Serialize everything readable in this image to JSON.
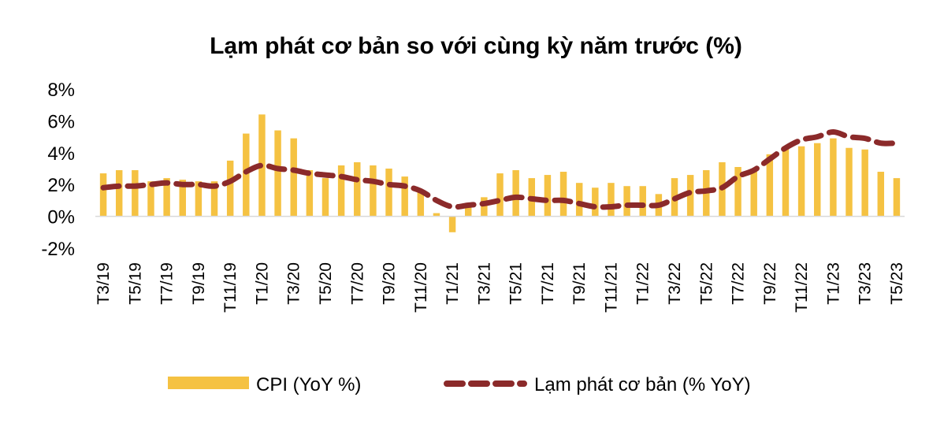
{
  "chart_data": {
    "type": "bar",
    "title": "Lạm phát cơ bản so với cùng kỳ năm trước (%)",
    "xlabel": "",
    "ylabel": "",
    "ylim": [
      -2,
      8
    ],
    "ytick_values": [
      -2,
      0,
      2,
      4,
      6,
      8
    ],
    "ytick_labels": [
      "-2%",
      "0%",
      "2%",
      "4%",
      "6%",
      "8%"
    ],
    "categories": [
      "T3/19",
      "T4/19",
      "T5/19",
      "T6/19",
      "T7/19",
      "T8/19",
      "T9/19",
      "T10/19",
      "T11/19",
      "T12/19",
      "T1/20",
      "T2/20",
      "T3/20",
      "T4/20",
      "T5/20",
      "T6/20",
      "T7/20",
      "T8/20",
      "T9/20",
      "T10/20",
      "T11/20",
      "T12/20",
      "T1/21",
      "T2/21",
      "T3/21",
      "T4/21",
      "T5/21",
      "T6/21",
      "T7/21",
      "T8/21",
      "T9/21",
      "T10/21",
      "T11/21",
      "T12/21",
      "T1/22",
      "T2/22",
      "T3/22",
      "T4/22",
      "T5/22",
      "T6/22",
      "T7/22",
      "T8/22",
      "T9/22",
      "T10/22",
      "T11/22",
      "T12/22",
      "T1/23",
      "T2/23",
      "T3/23",
      "T4/23",
      "T5/23"
    ],
    "visible_tick_labels": [
      "T3/19",
      "T5/19",
      "T7/19",
      "T9/19",
      "T11/19",
      "T1/20",
      "T3/20",
      "T5/20",
      "T7/20",
      "T9/20",
      "T11/20",
      "T1/21",
      "T3/21",
      "T5/21",
      "T7/21",
      "T9/21",
      "T11/21",
      "T1/22",
      "T3/22",
      "T5/22",
      "T7/22",
      "T9/22",
      "T11/22",
      "T1/23",
      "T3/23",
      "T5/23"
    ],
    "series": [
      {
        "name": "CPI (YoY %)",
        "type": "bar",
        "color": "#F5C242",
        "values": [
          2.7,
          2.9,
          2.9,
          2.2,
          2.4,
          2.3,
          2.2,
          2.2,
          3.5,
          5.2,
          6.4,
          5.4,
          4.9,
          2.9,
          2.4,
          3.2,
          3.4,
          3.2,
          3.0,
          2.5,
          1.5,
          0.2,
          -1.0,
          0.7,
          1.2,
          2.7,
          2.9,
          2.4,
          2.6,
          2.8,
          2.1,
          1.8,
          2.1,
          1.9,
          1.9,
          1.4,
          2.4,
          2.6,
          2.9,
          3.4,
          3.1,
          2.9,
          3.9,
          4.3,
          4.4,
          4.6,
          4.9,
          4.3,
          4.2,
          2.8,
          2.4
        ]
      },
      {
        "name": "Lạm phát cơ bản (% YoY)",
        "type": "line",
        "style": "dashed",
        "color": "#8B2A2A",
        "values": [
          1.8,
          1.9,
          1.9,
          2.0,
          2.1,
          2.0,
          2.0,
          1.9,
          2.2,
          2.8,
          3.2,
          3.0,
          2.9,
          2.7,
          2.6,
          2.5,
          2.3,
          2.2,
          2.0,
          1.9,
          1.6,
          1.0,
          0.6,
          0.7,
          0.8,
          1.0,
          1.2,
          1.1,
          1.0,
          1.0,
          0.8,
          0.6,
          0.6,
          0.7,
          0.7,
          0.7,
          1.1,
          1.5,
          1.6,
          1.8,
          2.5,
          2.9,
          3.6,
          4.3,
          4.8,
          5.0,
          5.3,
          5.0,
          4.9,
          4.6,
          4.6
        ]
      }
    ],
    "grid": false,
    "legend_position": "bottom"
  }
}
